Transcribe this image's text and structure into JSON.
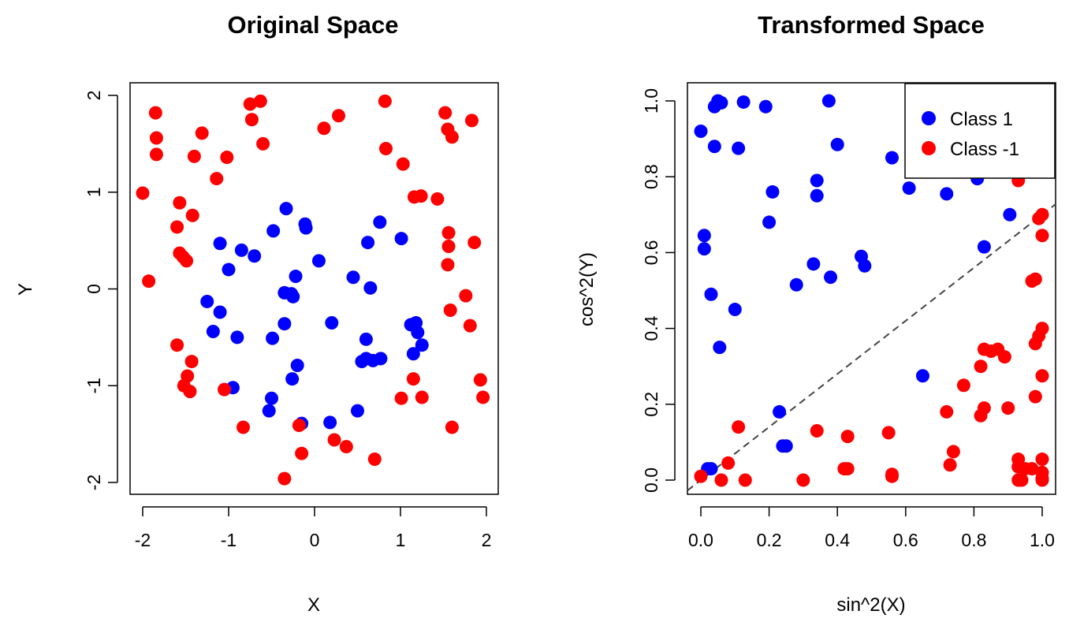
{
  "chart_data": [
    {
      "type": "scatter",
      "title": "Original Space",
      "xlabel": "X",
      "ylabel": "Y",
      "xlim": [
        -2,
        2
      ],
      "ylim": [
        -2,
        2
      ],
      "xticks": [
        "-2",
        "-1",
        "0",
        "1",
        "2"
      ],
      "yticks": [
        "-2",
        "-1",
        "0",
        "1",
        "2"
      ],
      "grid": false,
      "legend": null,
      "series": [
        {
          "color": "#0000ff",
          "points": [
            [
              -1.1,
              0.47
            ],
            [
              -0.85,
              0.4
            ],
            [
              -0.7,
              0.34
            ],
            [
              -1.0,
              0.2
            ],
            [
              -1.25,
              -0.13
            ],
            [
              -1.1,
              -0.24
            ],
            [
              -1.18,
              -0.44
            ],
            [
              -0.9,
              -0.5
            ],
            [
              -0.95,
              -1.02
            ],
            [
              -0.48,
              0.6
            ],
            [
              -0.33,
              0.83
            ],
            [
              -0.35,
              -0.04
            ],
            [
              -0.27,
              -0.05
            ],
            [
              -0.25,
              -0.08
            ],
            [
              -0.22,
              0.13
            ],
            [
              -0.35,
              -0.36
            ],
            [
              -0.49,
              -0.51
            ],
            [
              -0.26,
              -0.93
            ],
            [
              -0.2,
              -0.79
            ],
            [
              -0.5,
              -1.13
            ],
            [
              -0.53,
              -1.26
            ],
            [
              -0.15,
              -1.39
            ],
            [
              -0.11,
              0.67
            ],
            [
              -0.1,
              0.63
            ],
            [
              0.05,
              0.29
            ],
            [
              0.2,
              -0.35
            ],
            [
              0.18,
              -1.38
            ],
            [
              0.45,
              0.12
            ],
            [
              0.5,
              -1.26
            ],
            [
              0.62,
              0.48
            ],
            [
              0.65,
              0.01
            ],
            [
              0.6,
              -0.52
            ],
            [
              0.55,
              -0.75
            ],
            [
              0.6,
              -0.72
            ],
            [
              0.68,
              -0.74
            ],
            [
              0.77,
              -0.72
            ],
            [
              0.76,
              0.69
            ],
            [
              1.01,
              0.52
            ],
            [
              1.12,
              -0.37
            ],
            [
              1.18,
              -0.35
            ],
            [
              1.2,
              -0.45
            ],
            [
              1.25,
              -0.58
            ],
            [
              1.15,
              -0.67
            ]
          ]
        },
        {
          "color": "#ff0000",
          "points": [
            [
              -2.0,
              0.99
            ],
            [
              -1.93,
              0.08
            ],
            [
              -1.85,
              1.82
            ],
            [
              -1.84,
              1.56
            ],
            [
              -1.84,
              1.39
            ],
            [
              -1.6,
              0.64
            ],
            [
              -1.57,
              0.89
            ],
            [
              -1.57,
              0.37
            ],
            [
              -1.53,
              0.33
            ],
            [
              -1.49,
              0.29
            ],
            [
              -1.42,
              0.76
            ],
            [
              -1.4,
              1.37
            ],
            [
              -1.31,
              1.61
            ],
            [
              -1.14,
              1.14
            ],
            [
              -1.02,
              1.36
            ],
            [
              -1.6,
              -0.58
            ],
            [
              -1.43,
              -0.75
            ],
            [
              -1.48,
              -0.9
            ],
            [
              -1.52,
              -1.0
            ],
            [
              -1.45,
              -1.06
            ],
            [
              -1.05,
              -1.04
            ],
            [
              -0.83,
              -1.43
            ],
            [
              -0.75,
              1.91
            ],
            [
              -0.63,
              1.94
            ],
            [
              -0.73,
              1.75
            ],
            [
              -0.6,
              1.5
            ],
            [
              0.11,
              1.66
            ],
            [
              0.28,
              1.79
            ],
            [
              0.82,
              1.94
            ],
            [
              0.83,
              1.45
            ],
            [
              1.03,
              1.29
            ],
            [
              1.16,
              0.95
            ],
            [
              1.24,
              0.96
            ],
            [
              1.43,
              0.93
            ],
            [
              1.52,
              1.82
            ],
            [
              1.55,
              1.65
            ],
            [
              1.6,
              1.57
            ],
            [
              1.83,
              1.74
            ],
            [
              1.56,
              0.58
            ],
            [
              1.56,
              0.44
            ],
            [
              1.55,
              0.25
            ],
            [
              1.86,
              0.48
            ],
            [
              1.76,
              -0.07
            ],
            [
              1.58,
              -0.22
            ],
            [
              1.81,
              -0.38
            ],
            [
              1.93,
              -0.94
            ],
            [
              1.96,
              -1.12
            ],
            [
              1.6,
              -1.43
            ],
            [
              1.25,
              -1.12
            ],
            [
              1.01,
              -1.13
            ],
            [
              1.15,
              -0.93
            ],
            [
              0.7,
              -1.76
            ],
            [
              0.37,
              -1.63
            ],
            [
              0.23,
              -1.56
            ],
            [
              -0.15,
              -1.7
            ],
            [
              -0.18,
              -1.41
            ],
            [
              -0.35,
              -1.96
            ]
          ]
        }
      ]
    },
    {
      "type": "scatter",
      "title": "Transformed Space",
      "xlabel": "sin^2(X)",
      "ylabel": "cos^2(Y)",
      "xlim": [
        0,
        1
      ],
      "ylim": [
        0,
        1
      ],
      "xticks": [
        "0.0",
        "0.2",
        "0.4",
        "0.6",
        "0.8",
        "1.0"
      ],
      "yticks": [
        "0.0",
        "0.2",
        "0.4",
        "0.6",
        "0.8",
        "1.0"
      ],
      "grid": false,
      "legend": "top-right",
      "reference_line": {
        "slope": 0.7,
        "intercept": 0,
        "style": "dashed",
        "color": "#444444"
      },
      "series": [
        {
          "name": "Class 1",
          "color": "#0000ff",
          "points": [
            [
              0.05,
              1.0
            ],
            [
              0.06,
              0.995
            ],
            [
              0.04,
              0.985
            ],
            [
              0.125,
              0.997
            ],
            [
              0.19,
              0.985
            ],
            [
              0.375,
              1.0
            ],
            [
              0.0,
              0.92
            ],
            [
              0.04,
              0.88
            ],
            [
              0.11,
              0.875
            ],
            [
              0.4,
              0.885
            ],
            [
              0.56,
              0.85
            ],
            [
              0.21,
              0.76
            ],
            [
              0.34,
              0.79
            ],
            [
              0.34,
              0.75
            ],
            [
              0.61,
              0.77
            ],
            [
              0.72,
              0.755
            ],
            [
              0.81,
              0.795
            ],
            [
              0.905,
              0.7
            ],
            [
              0.2,
              0.68
            ],
            [
              0.01,
              0.645
            ],
            [
              0.01,
              0.61
            ],
            [
              0.83,
              0.615
            ],
            [
              0.33,
              0.57
            ],
            [
              0.47,
              0.59
            ],
            [
              0.48,
              0.565
            ],
            [
              0.38,
              0.535
            ],
            [
              0.28,
              0.515
            ],
            [
              0.03,
              0.49
            ],
            [
              0.1,
              0.45
            ],
            [
              0.055,
              0.35
            ],
            [
              0.65,
              0.275
            ],
            [
              0.23,
              0.18
            ],
            [
              0.24,
              0.09
            ],
            [
              0.25,
              0.09
            ],
            [
              0.02,
              0.03
            ],
            [
              0.03,
              0.03
            ]
          ]
        },
        {
          "name": "Class -1",
          "color": "#ff0000",
          "points": [
            [
              0.11,
              0.14
            ],
            [
              0.08,
              0.045
            ],
            [
              0.0,
              0.01
            ],
            [
              0.06,
              0.0
            ],
            [
              0.13,
              0.0
            ],
            [
              0.3,
              0.0
            ],
            [
              0.34,
              0.13
            ],
            [
              0.43,
              0.115
            ],
            [
              0.42,
              0.03
            ],
            [
              0.43,
              0.03
            ],
            [
              0.55,
              0.125
            ],
            [
              0.56,
              0.015
            ],
            [
              0.56,
              0.01
            ],
            [
              0.72,
              0.18
            ],
            [
              0.73,
              0.04
            ],
            [
              0.74,
              0.075
            ],
            [
              0.77,
              0.25
            ],
            [
              0.82,
              0.17
            ],
            [
              0.83,
              0.19
            ],
            [
              0.82,
              0.3
            ],
            [
              0.83,
              0.345
            ],
            [
              0.85,
              0.34
            ],
            [
              0.87,
              0.345
            ],
            [
              0.89,
              0.325
            ],
            [
              0.9,
              0.19
            ],
            [
              0.93,
              0.79
            ],
            [
              0.93,
              0.055
            ],
            [
              0.93,
              0.035
            ],
            [
              0.93,
              0.0
            ],
            [
              0.94,
              0.0
            ],
            [
              0.95,
              0.03
            ],
            [
              0.97,
              0.03
            ],
            [
              0.97,
              0.525
            ],
            [
              0.98,
              0.53
            ],
            [
              0.98,
              0.36
            ],
            [
              0.99,
              0.38
            ],
            [
              1.0,
              0.4
            ],
            [
              0.98,
              0.22
            ],
            [
              1.0,
              0.275
            ],
            [
              0.99,
              0.69
            ],
            [
              1.0,
              0.7
            ],
            [
              1.0,
              0.645
            ],
            [
              1.0,
              0.055
            ],
            [
              1.0,
              0.02
            ],
            [
              1.0,
              0.005
            ],
            [
              1.0,
              0.0
            ]
          ]
        }
      ]
    }
  ]
}
